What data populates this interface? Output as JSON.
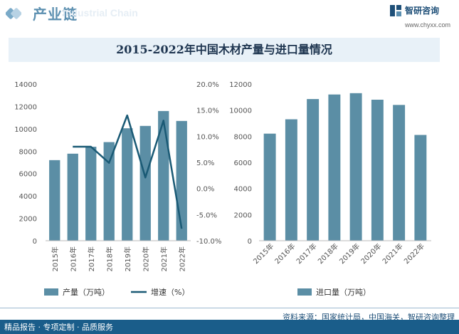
{
  "header": {
    "title": "产业链",
    "watermark": "Industrial Chain",
    "logo_text": "智研咨询",
    "url": "www.chyxx.com"
  },
  "chart_title": "2015-2022年中国木材产量与进口量情况",
  "source": "资料来源：国家统计局，中国海关，智研咨询整理",
  "footer": "精品报告 · 专项定制 · 品质服务",
  "colors": {
    "bar": "#5b8ea5",
    "line": "#1a5a75",
    "footer": "#1a5d8a"
  },
  "chart_data": [
    {
      "type": "bar+line",
      "categories": [
        "2015年",
        "2016年",
        "2017年",
        "2018年",
        "2019年",
        "2020年",
        "2021年",
        "2022年"
      ],
      "series": [
        {
          "name": "产量（万吨）",
          "kind": "bar",
          "axis": "left",
          "values": [
            7200,
            7776,
            8398,
            8811,
            10046,
            10257,
            11589,
            10701
          ]
        },
        {
          "name": "增速（%）",
          "kind": "line",
          "axis": "right",
          "values": [
            null,
            8.0,
            8.0,
            4.9,
            14.0,
            2.1,
            13.0,
            -7.7
          ]
        }
      ],
      "ylim_left": [
        0,
        14000
      ],
      "yticks_left": [
        "0",
        "2000",
        "4000",
        "6000",
        "8000",
        "10000",
        "12000",
        "14000"
      ],
      "ylim_right": [
        -10,
        20
      ],
      "yticks_right": [
        "-10.0%",
        "-5.0%",
        "0.0%",
        "5.0%",
        "10.0%",
        "15.0%",
        "20.0%"
      ],
      "legend_position": "bottom"
    },
    {
      "type": "bar",
      "categories": [
        "2015年",
        "2016年",
        "2017年",
        "2018年",
        "2019年",
        "2020年",
        "2021年",
        "2022年"
      ],
      "series": [
        {
          "name": "进口量（万吨）",
          "values": [
            8200,
            9300,
            10850,
            11200,
            11300,
            10800,
            10400,
            8100
          ]
        }
      ],
      "ylim": [
        0,
        12000
      ],
      "yticks": [
        "0",
        "2000",
        "4000",
        "6000",
        "8000",
        "10000",
        "12000"
      ],
      "legend_position": "bottom"
    }
  ]
}
